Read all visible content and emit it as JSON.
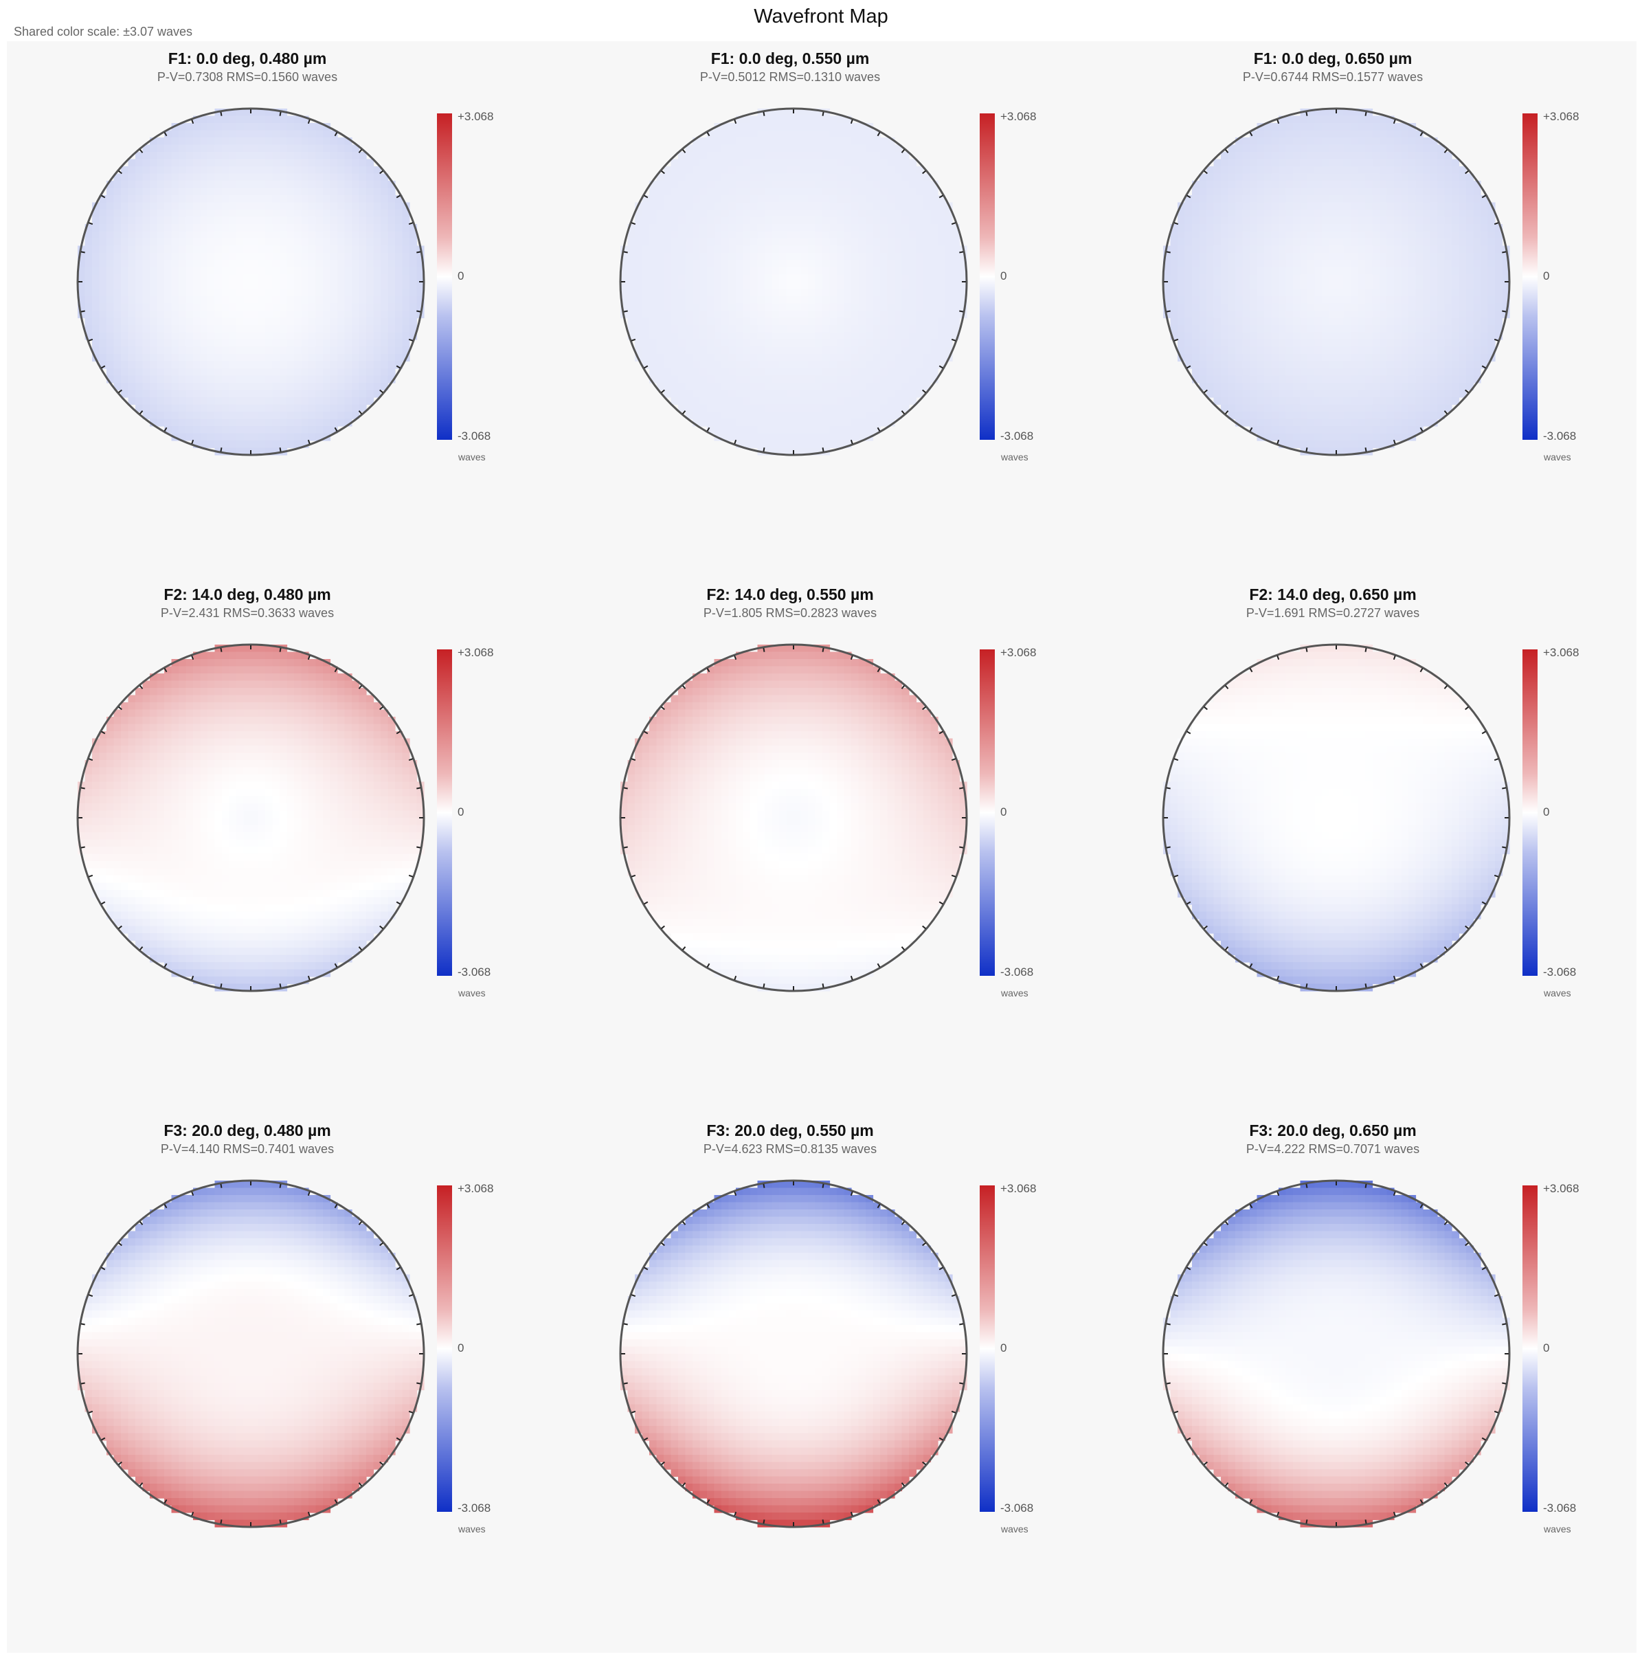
{
  "header": {
    "title": "Wavefront Map",
    "subtitle": "Shared color scale: ±3.07 waves"
  },
  "chart_data": {
    "type": "heatmap",
    "title": "Wavefront Map",
    "subtitle": "Shared color scale: ±3.07 waves",
    "colorscale": {
      "min": -3.068,
      "max": 3.068,
      "unit": "waves",
      "tick_labels": [
        "+3.068",
        "0",
        "-3.068"
      ],
      "colors": {
        "high": "#c62024",
        "mid": "#ffffff",
        "low": "#0f2fc6"
      }
    },
    "grid": {
      "rows": 3,
      "cols": 3
    },
    "panels": [
      {
        "title": "F1: 0.0 deg, 0.480 µm",
        "stats": "P-V=0.7308 RMS=0.1560 waves",
        "field": "F1",
        "field_deg": 0.0,
        "wavelength_um": 0.48,
        "pv": 0.7308,
        "rms": 0.156,
        "center_value": -0.05,
        "edge_value": -0.6,
        "bottom_value": -0.6,
        "top_value": -0.6,
        "slope": 0.0,
        "ring": 0.0
      },
      {
        "title": "F1: 0.0 deg, 0.550 µm",
        "stats": "P-V=0.5012 RMS=0.1310 waves",
        "field": "F1",
        "field_deg": 0.0,
        "wavelength_um": 0.55,
        "pv": 0.5012,
        "rms": 0.131,
        "center_value": -0.05,
        "edge_value": -0.3,
        "bottom_value": -0.3,
        "top_value": -0.3,
        "slope": 0.0,
        "ring": -0.2
      },
      {
        "title": "F1: 0.0 deg, 0.650 µm",
        "stats": "P-V=0.6744 RMS=0.1577 waves",
        "field": "F1",
        "field_deg": 0.0,
        "wavelength_um": 0.65,
        "pv": 0.6744,
        "rms": 0.1577,
        "center_value": -0.15,
        "edge_value": -0.55,
        "bottom_value": -0.55,
        "top_value": -0.55,
        "slope": 0.0,
        "ring": -0.1
      },
      {
        "title": "F2: 14.0 deg, 0.480 µm",
        "stats": "P-V=2.431 RMS=0.3633 waves",
        "field": "F2",
        "field_deg": 14.0,
        "wavelength_um": 0.48,
        "pv": 2.431,
        "rms": 0.3633,
        "center_value": -0.1,
        "edge_value": 0.4,
        "bottom_value": -1.6,
        "top_value": 0.9,
        "slope": 0.0,
        "ring": 0.25
      },
      {
        "title": "F2: 14.0 deg, 0.550 µm",
        "stats": "P-V=1.805 RMS=0.2823 waves",
        "field": "F2",
        "field_deg": 14.0,
        "wavelength_um": 0.55,
        "pv": 1.805,
        "rms": 0.2823,
        "center_value": -0.1,
        "edge_value": 0.6,
        "bottom_value": -0.9,
        "top_value": 0.8,
        "slope": 0.0,
        "ring": 0.15
      },
      {
        "title": "F2: 14.0 deg, 0.650 µm",
        "stats": "P-V=1.691 RMS=0.2727 waves",
        "field": "F2",
        "field_deg": 14.0,
        "wavelength_um": 0.65,
        "pv": 1.691,
        "rms": 0.2727,
        "center_value": 0.0,
        "edge_value": -0.4,
        "bottom_value": -1.3,
        "top_value": 0.25,
        "slope": 0.0,
        "ring": 0.0
      },
      {
        "title": "F3: 20.0 deg, 0.480 µm",
        "stats": "P-V=4.140 RMS=0.7401 waves",
        "field": "F3",
        "field_deg": 20.0,
        "wavelength_um": 0.48,
        "pv": 4.14,
        "rms": 0.7401,
        "center_value": 0.15,
        "edge_value": 0.3,
        "bottom_value": 2.1,
        "top_value": -1.8,
        "slope": 0.0,
        "ring": 0.0
      },
      {
        "title": "F3: 20.0 deg, 0.550 µm",
        "stats": "P-V=4.623 RMS=0.8135 waves",
        "field": "F3",
        "field_deg": 20.0,
        "wavelength_um": 0.55,
        "pv": 4.623,
        "rms": 0.8135,
        "center_value": 0.05,
        "edge_value": 0.3,
        "bottom_value": 2.3,
        "top_value": -2.3,
        "slope": 0.0,
        "ring": 0.0
      },
      {
        "title": "F3: 20.0 deg, 0.650 µm",
        "stats": "P-V=4.222 RMS=0.7071 waves",
        "field": "F3",
        "field_deg": 20.0,
        "wavelength_um": 0.65,
        "pv": 4.222,
        "rms": 0.7071,
        "center_value": -0.1,
        "edge_value": 0.0,
        "bottom_value": 1.4,
        "top_value": -2.8,
        "slope": 0.0,
        "ring": 0.0
      }
    ]
  }
}
